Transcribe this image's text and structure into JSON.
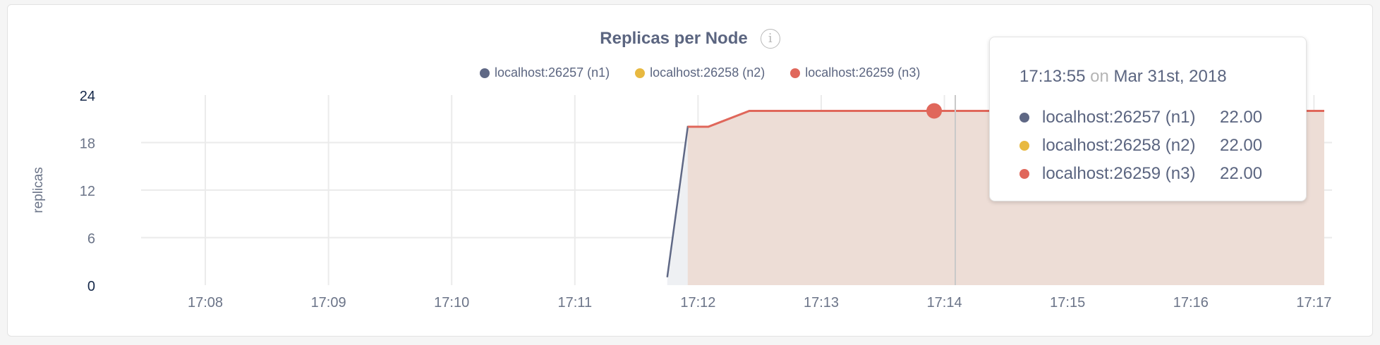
{
  "chart_data": {
    "type": "area",
    "title": "Replicas per Node",
    "ylabel": "replicas",
    "xlabel": "",
    "ylim": [
      0,
      24
    ],
    "yticks": [
      "0",
      "6",
      "12",
      "18",
      "24"
    ],
    "xticks": [
      "17:08",
      "17:09",
      "17:10",
      "17:11",
      "17:12",
      "17:13",
      "17:14",
      "17:15",
      "17:16",
      "17:17"
    ],
    "grid": true,
    "legend_position": "top-right",
    "series": [
      {
        "name": "localhost:26257 (n1)",
        "color": "#5f6885",
        "x": [
          "17:11:45",
          "17:11:55",
          "17:12:05",
          "17:12:25",
          "17:13:55",
          "17:17:05"
        ],
        "values": [
          1,
          20,
          20,
          22,
          22,
          22
        ]
      },
      {
        "name": "localhost:26258 (n2)",
        "color": "#e8b940",
        "x": [
          "17:11:55",
          "17:12:05",
          "17:12:25",
          "17:13:55",
          "17:17:05"
        ],
        "values": [
          20,
          20,
          22,
          22,
          22
        ]
      },
      {
        "name": "localhost:26259 (n3)",
        "color": "#e0675b",
        "x": [
          "17:11:55",
          "17:12:05",
          "17:12:25",
          "17:13:55",
          "17:17:05"
        ],
        "values": [
          20,
          20,
          22,
          22,
          22
        ]
      }
    ],
    "tooltip": {
      "time": "17:13:55",
      "on": "on",
      "date": "Mar 31st, 2018",
      "rows": [
        {
          "label": "localhost:26257 (n1)",
          "value": "22.00",
          "color": "#5f6885"
        },
        {
          "label": "localhost:26258 (n2)",
          "value": "22.00",
          "color": "#e8b940"
        },
        {
          "label": "localhost:26259 (n3)",
          "value": "22.00",
          "color": "#e0675b"
        }
      ]
    }
  }
}
